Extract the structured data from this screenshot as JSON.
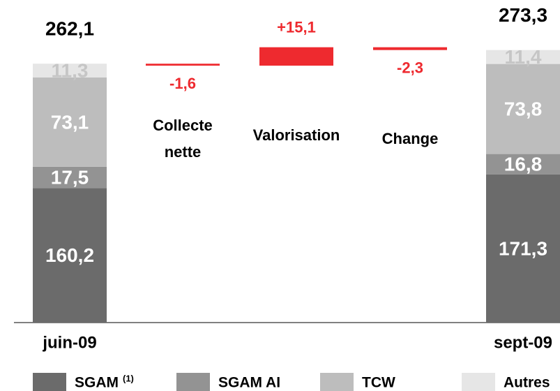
{
  "chart_data": {
    "type": "waterfall",
    "categories": [
      "juin-09",
      "Collecte nette",
      "Valorisation",
      "Change",
      "sept-09"
    ],
    "series": [
      {
        "name": "SGAM",
        "note": "(1)",
        "color": "#6b6b6b",
        "values": [
          160.2,
          null,
          null,
          null,
          171.3
        ],
        "value_labels": [
          "160,2",
          null,
          null,
          null,
          "171,3"
        ]
      },
      {
        "name": "SGAM AI",
        "color": "#939393",
        "values": [
          17.5,
          null,
          null,
          null,
          16.8
        ],
        "value_labels": [
          "17,5",
          null,
          null,
          null,
          "16,8"
        ]
      },
      {
        "name": "TCW",
        "color": "#bdbdbd",
        "values": [
          73.1,
          null,
          null,
          null,
          73.8
        ],
        "value_labels": [
          "73,1",
          null,
          null,
          null,
          "73,8"
        ]
      },
      {
        "name": "Autres",
        "color": "#e6e6e6",
        "values": [
          11.3,
          null,
          null,
          null,
          11.4
        ],
        "value_labels": [
          "11,3",
          null,
          null,
          null,
          "11,4"
        ]
      }
    ],
    "totals": [
      262.1,
      null,
      null,
      null,
      273.3
    ],
    "total_labels": [
      "262,1",
      null,
      null,
      null,
      "273,3"
    ],
    "deltas": [
      null,
      -1.6,
      15.1,
      -2.3,
      null
    ],
    "delta_labels": [
      null,
      "-1,6",
      "+15,1",
      "-2,3",
      null
    ],
    "delta_color": "#ee2a2f",
    "ylim": [
      50,
      300
    ]
  }
}
